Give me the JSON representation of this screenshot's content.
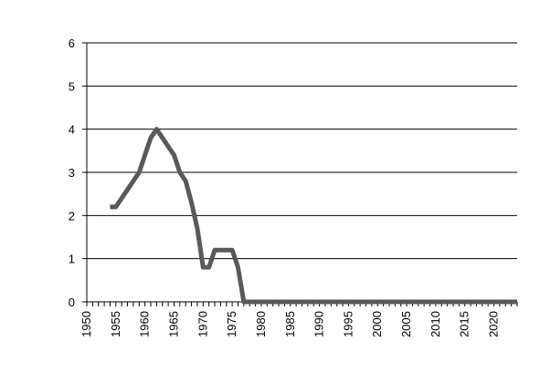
{
  "chart_data": {
    "type": "line",
    "title": "",
    "xlabel": "",
    "ylabel": "",
    "xlim": [
      1950,
      2024
    ],
    "ylim": [
      0,
      6
    ],
    "grid": "horizontal",
    "y_ticks": [
      0,
      1,
      2,
      3,
      4,
      5,
      6
    ],
    "x_tick_labels": [
      1950,
      1955,
      1960,
      1965,
      1970,
      1975,
      1980,
      1985,
      1990,
      1995,
      2000,
      2005,
      2010,
      2015,
      2020
    ],
    "colors": {
      "line": "#595959",
      "grid": "#000000",
      "axis": "#000000"
    },
    "series": [
      {
        "x": [
          1954,
          1955,
          1956,
          1957,
          1958,
          1959,
          1960,
          1961,
          1962,
          1963,
          1964,
          1965,
          1966,
          1967,
          1968,
          1969,
          1970,
          1971,
          1972,
          1973,
          1974,
          1975,
          1976,
          1977,
          1978,
          1980,
          1985,
          1990,
          1995,
          2000,
          2005,
          2010,
          2015,
          2020,
          2024
        ],
        "y": [
          2.2,
          2.2,
          2.4,
          2.6,
          2.8,
          3.0,
          3.4,
          3.8,
          4.0,
          3.8,
          3.6,
          3.4,
          3.0,
          2.8,
          2.3,
          1.7,
          0.8,
          0.8,
          1.2,
          1.2,
          1.2,
          1.2,
          0.8,
          0.0,
          0.0,
          0.0,
          0.0,
          0.0,
          0.0,
          0.0,
          0.0,
          0.0,
          0.0,
          0.0,
          0.0
        ]
      }
    ]
  }
}
